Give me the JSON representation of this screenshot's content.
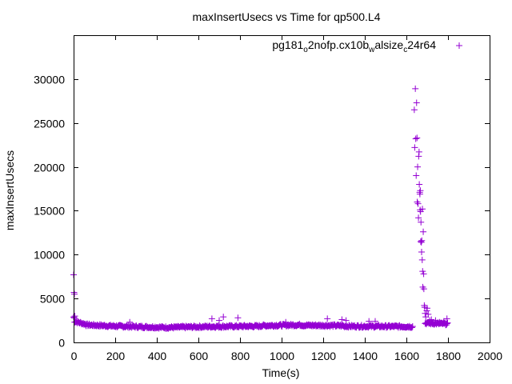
{
  "chart_data": {
    "type": "scatter",
    "title": "maxInsertUsecs vs Time for qp500.L4",
    "xlabel": "Time(s)",
    "ylabel": "maxInsertUsecs",
    "xlim": [
      0,
      2000
    ],
    "ylim": [
      0,
      35000
    ],
    "x_ticks": [
      0,
      200,
      400,
      600,
      800,
      1000,
      1200,
      1400,
      1600,
      1800,
      2000
    ],
    "y_ticks": [
      0,
      5000,
      10000,
      15000,
      20000,
      25000,
      30000
    ],
    "grid": false,
    "legend_position": "top-right",
    "marker": "+",
    "color": "#9400d3",
    "series": [
      {
        "name": "pg181_o2nofp.cx10b_walsize_c24r64",
        "legend_parts": [
          {
            "text": "pg181",
            "sub": false
          },
          {
            "text": "o",
            "sub": true
          },
          {
            "text": "2nofp.cx10b",
            "sub": false
          },
          {
            "text": "w",
            "sub": true
          },
          {
            "text": "alsize",
            "sub": false
          },
          {
            "text": "c",
            "sub": true
          },
          {
            "text": "24r64",
            "sub": false
          }
        ],
        "baseline_segments": [
          {
            "x0": 0,
            "x1": 5,
            "y0": 2900,
            "y1": 2700
          },
          {
            "x0": 5,
            "x1": 60,
            "y0": 2400,
            "y1": 2050
          },
          {
            "x0": 60,
            "x1": 200,
            "y0": 2000,
            "y1": 1850
          },
          {
            "x0": 200,
            "x1": 450,
            "y0": 1850,
            "y1": 1700
          },
          {
            "x0": 450,
            "x1": 650,
            "y0": 1700,
            "y1": 1800
          },
          {
            "x0": 650,
            "x1": 900,
            "y0": 1800,
            "y1": 1850
          },
          {
            "x0": 900,
            "x1": 1100,
            "y0": 1900,
            "y1": 2000
          },
          {
            "x0": 1100,
            "x1": 1300,
            "y0": 1950,
            "y1": 1900
          },
          {
            "x0": 1300,
            "x1": 1630,
            "y0": 1850,
            "y1": 1800
          },
          {
            "x0": 1690,
            "x1": 1800,
            "y0": 2200,
            "y1": 2100
          }
        ],
        "outliers": [
          [
            0,
            7700
          ],
          [
            2,
            5700
          ],
          [
            4,
            5500
          ],
          [
            6,
            3000
          ],
          [
            270,
            2300
          ],
          [
            665,
            2700
          ],
          [
            700,
            2500
          ],
          [
            720,
            2900
          ],
          [
            790,
            2800
          ],
          [
            1020,
            2300
          ],
          [
            1220,
            2700
          ],
          [
            1290,
            2600
          ],
          [
            1310,
            2500
          ],
          [
            1420,
            2400
          ],
          [
            1450,
            2400
          ],
          [
            1638,
            26500
          ],
          [
            1640,
            22200
          ],
          [
            1643,
            28900
          ],
          [
            1645,
            23200
          ],
          [
            1647,
            19000
          ],
          [
            1649,
            27300
          ],
          [
            1651,
            23300
          ],
          [
            1652,
            16000
          ],
          [
            1654,
            20000
          ],
          [
            1656,
            15800
          ],
          [
            1658,
            14200
          ],
          [
            1659,
            21200
          ],
          [
            1661,
            21700
          ],
          [
            1662,
            18000
          ],
          [
            1664,
            17100
          ],
          [
            1665,
            16900
          ],
          [
            1666,
            15100
          ],
          [
            1667,
            17300
          ],
          [
            1668,
            14900
          ],
          [
            1669,
            11500
          ],
          [
            1670,
            13700
          ],
          [
            1672,
            11400
          ],
          [
            1673,
            10300
          ],
          [
            1674,
            11600
          ],
          [
            1676,
            9400
          ],
          [
            1677,
            15200
          ],
          [
            1678,
            8100
          ],
          [
            1679,
            6300
          ],
          [
            1681,
            12600
          ],
          [
            1683,
            7800
          ],
          [
            1684,
            6100
          ],
          [
            1686,
            4200
          ],
          [
            1688,
            4000
          ],
          [
            1690,
            3300
          ],
          [
            1693,
            2900
          ],
          [
            1698,
            3600
          ],
          [
            1700,
            3900
          ],
          [
            1705,
            3200
          ],
          [
            1712,
            2500
          ],
          [
            1720,
            2600
          ],
          [
            1740,
            2500
          ],
          [
            1760,
            2300
          ],
          [
            1780,
            2400
          ],
          [
            1795,
            2700
          ]
        ]
      }
    ]
  }
}
